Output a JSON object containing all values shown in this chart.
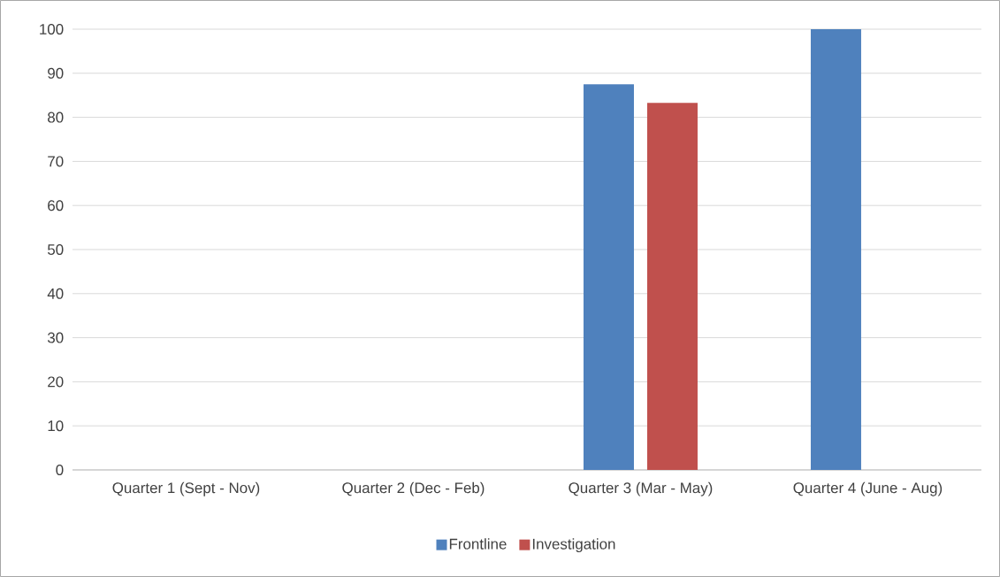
{
  "chart_data": {
    "type": "bar",
    "categories": [
      "Quarter 1 (Sept - Nov)",
      "Quarter 2 (Dec - Feb)",
      "Quarter 3 (Mar - May)",
      "Quarter 4 (June - Aug)"
    ],
    "series": [
      {
        "name": "Frontline",
        "color": "#4f81bd",
        "values": [
          null,
          null,
          87.5,
          100
        ]
      },
      {
        "name": "Investigation",
        "color": "#c0504d",
        "values": [
          null,
          null,
          83.3,
          null
        ]
      }
    ],
    "ylim": [
      0,
      100
    ],
    "yticks": [
      0,
      10,
      20,
      30,
      40,
      50,
      60,
      70,
      80,
      90,
      100
    ],
    "grid": "y",
    "legend": "bottom"
  }
}
